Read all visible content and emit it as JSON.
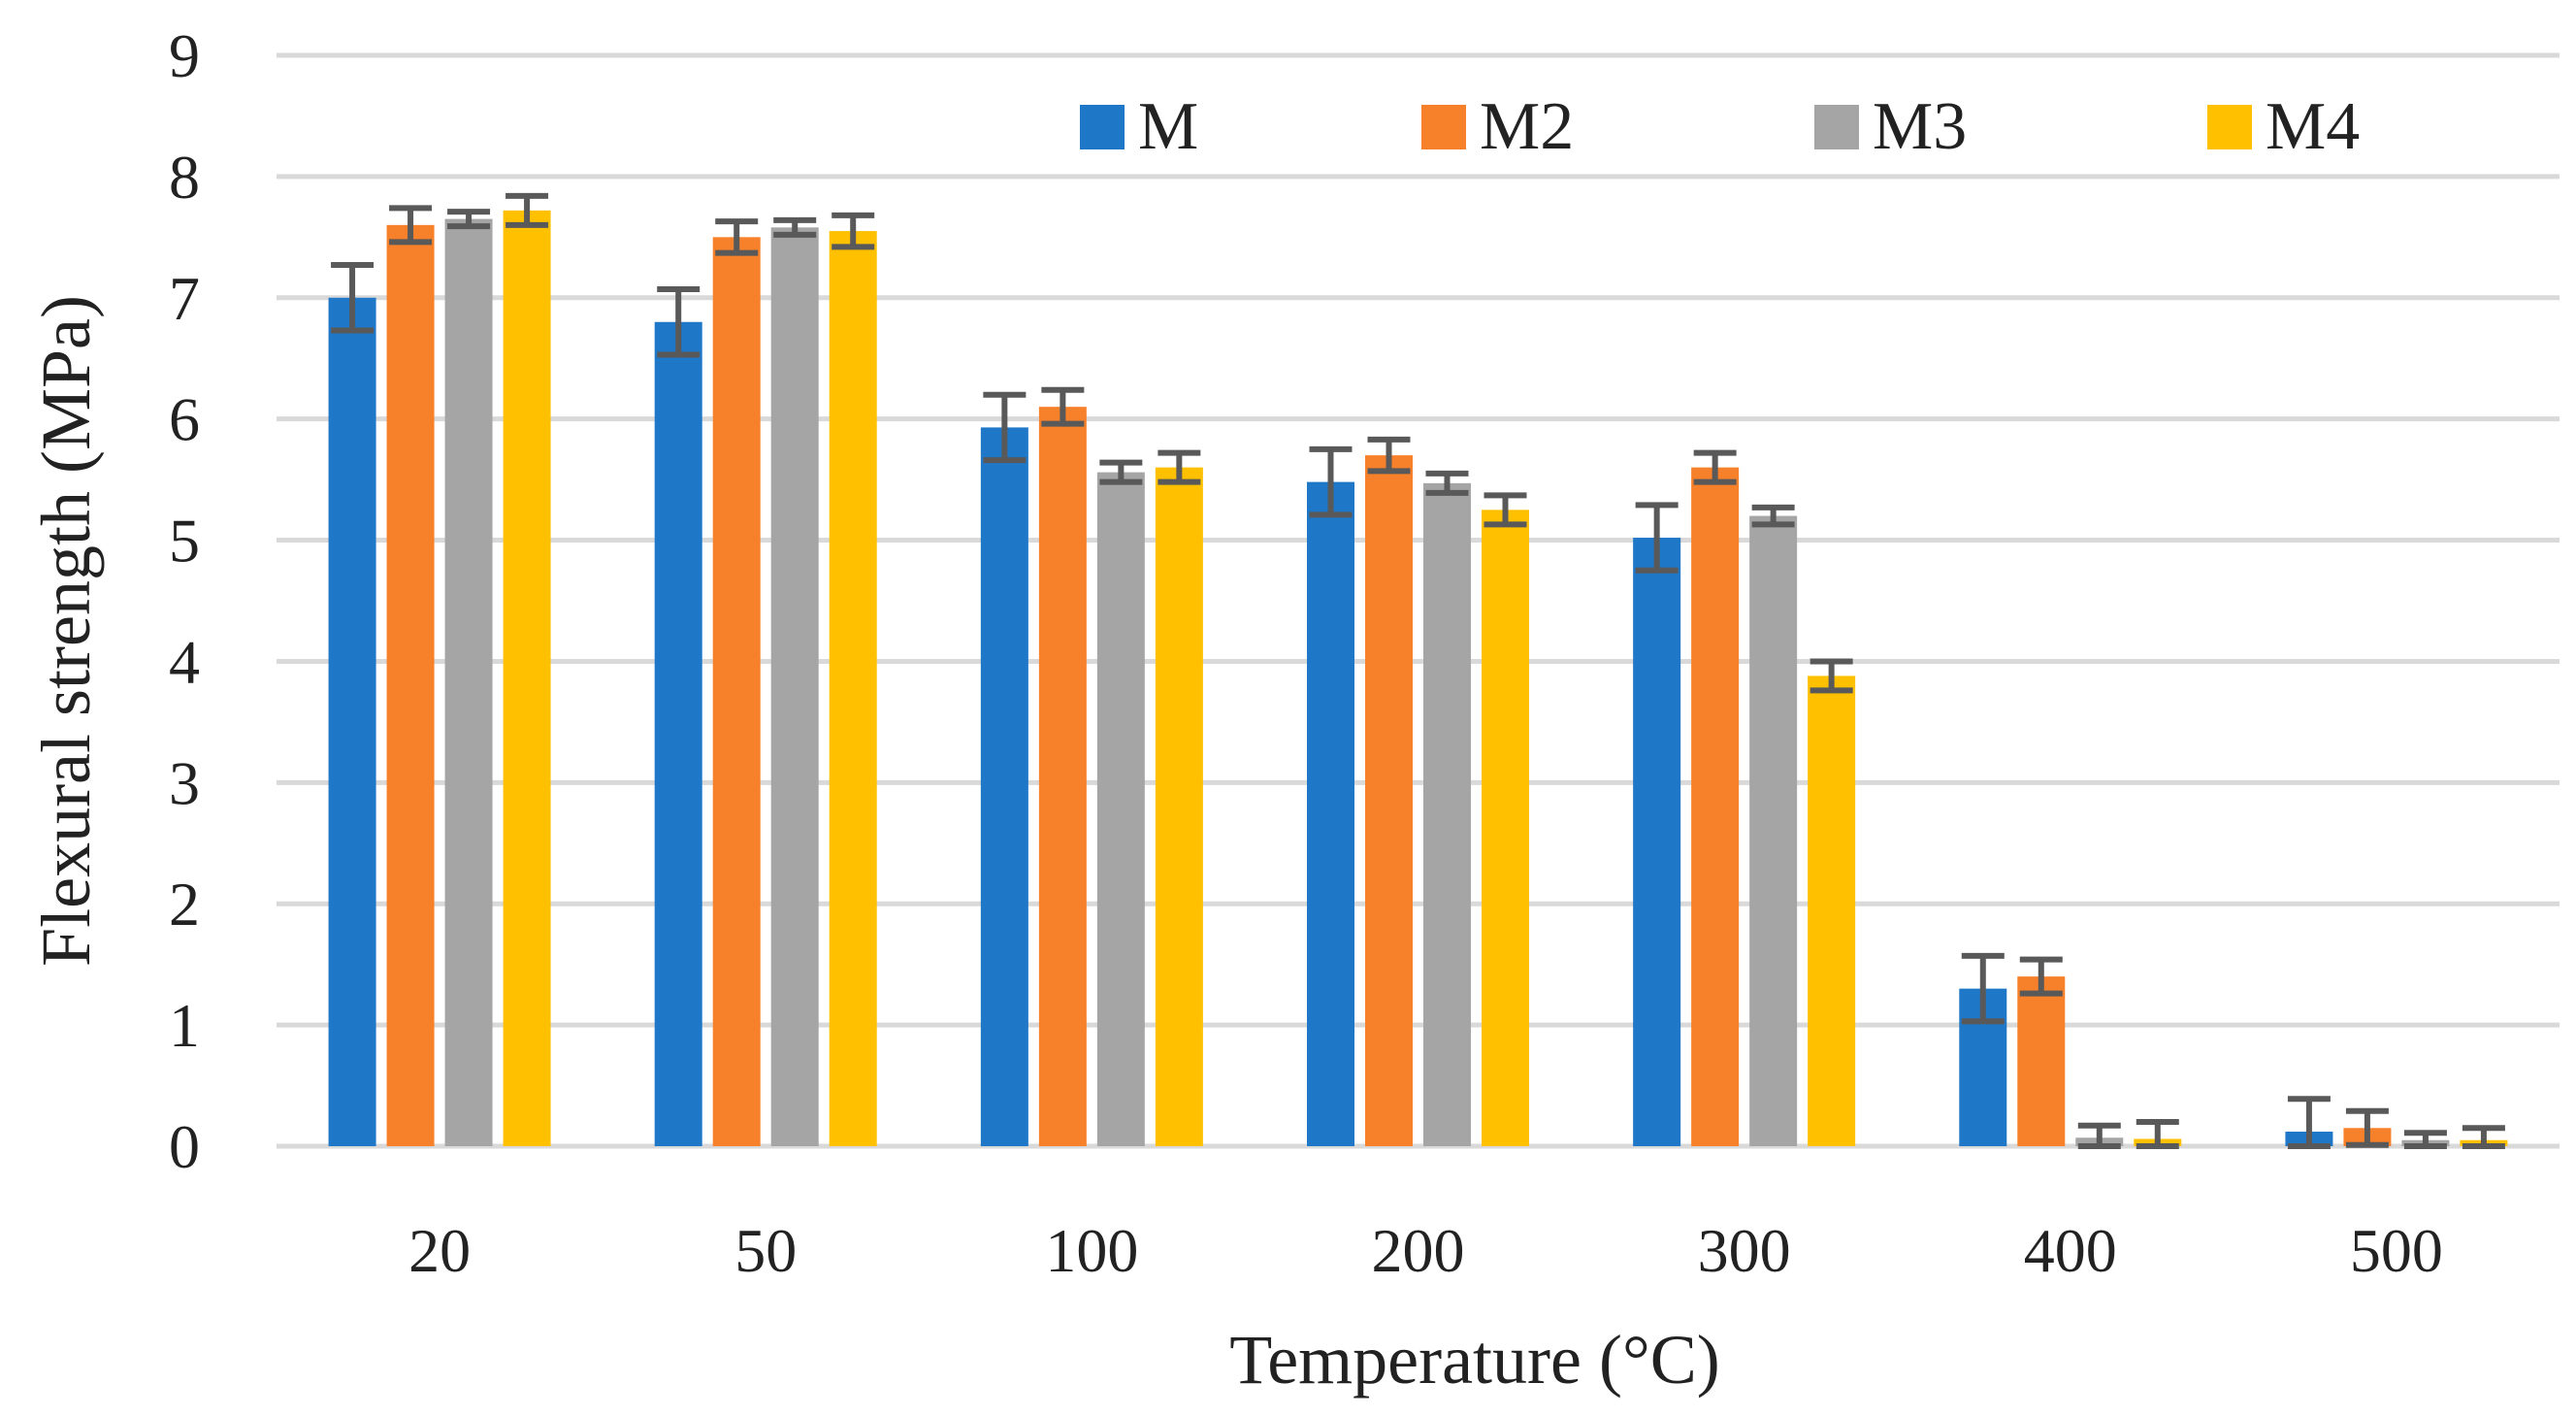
{
  "chart_data": {
    "type": "bar",
    "title": "",
    "xlabel": "Temperature (°C)",
    "ylabel": "Flexural strength (MPa)",
    "ylim": [
      0,
      9
    ],
    "yticks": [
      "0",
      "1",
      "2",
      "3",
      "4",
      "5",
      "6",
      "7",
      "8",
      "9"
    ],
    "grid": true,
    "legend_position": "top",
    "categories": [
      "20",
      "50",
      "100",
      "200",
      "300",
      "400",
      "500"
    ],
    "series": [
      {
        "name": "M",
        "color": "#1f77c8",
        "values": [
          7.0,
          6.8,
          5.93,
          5.48,
          5.02,
          1.3,
          0.12
        ],
        "errors": [
          0.27,
          0.27,
          0.27,
          0.27,
          0.27,
          0.27,
          0.27
        ]
      },
      {
        "name": "M2",
        "color": "#f7812a",
        "values": [
          7.6,
          7.5,
          6.1,
          5.7,
          5.6,
          1.4,
          0.15
        ],
        "errors": [
          0.14,
          0.13,
          0.14,
          0.13,
          0.12,
          0.14,
          0.14
        ]
      },
      {
        "name": "M3",
        "color": "#a5a5a5",
        "values": [
          7.65,
          7.58,
          5.56,
          5.47,
          5.2,
          0.07,
          0.05
        ],
        "errors": [
          0.06,
          0.06,
          0.08,
          0.08,
          0.07,
          0.1,
          0.06
        ]
      },
      {
        "name": "M4",
        "color": "#ffc000",
        "values": [
          7.72,
          7.55,
          5.6,
          5.25,
          3.88,
          0.06,
          0.05
        ],
        "errors": [
          0.12,
          0.13,
          0.12,
          0.12,
          0.12,
          0.14,
          0.1
        ]
      }
    ]
  }
}
